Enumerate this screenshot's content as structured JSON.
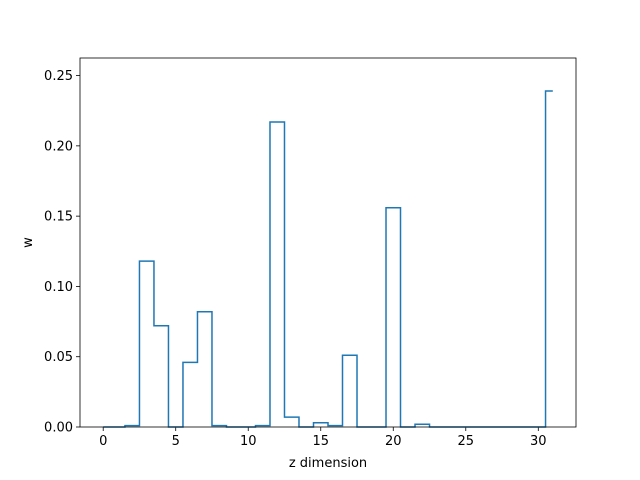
{
  "chart_data": {
    "type": "line",
    "subtype": "step-histogram",
    "title": "",
    "xlabel": "z dimension",
    "ylabel": "w",
    "xlim": [
      -1.6,
      32.6
    ],
    "ylim": [
      0,
      0.2625
    ],
    "xticks": [
      0,
      5,
      10,
      15,
      20,
      25,
      30
    ],
    "yticks": [
      0.0,
      0.05,
      0.1,
      0.15,
      0.2,
      0.25
    ],
    "ytick_labels": [
      "0.00",
      "0.05",
      "0.10",
      "0.15",
      "0.20",
      "0.25"
    ],
    "grid": false,
    "color": "#1f77b4",
    "series": [
      {
        "x": [
          0,
          1,
          2,
          3,
          4,
          5,
          6,
          7,
          8,
          9,
          10,
          11,
          12,
          13,
          14,
          15,
          16,
          17,
          18,
          19,
          20,
          21,
          22,
          23,
          24,
          25,
          26,
          27,
          28,
          29,
          30,
          31
        ],
        "values": [
          0.0,
          0.0,
          0.001,
          0.118,
          0.072,
          0.0,
          0.046,
          0.082,
          0.001,
          0.0,
          0.0,
          0.001,
          0.217,
          0.007,
          0.0,
          0.003,
          0.001,
          0.051,
          0.0,
          0.0,
          0.156,
          0.0,
          0.002,
          0.0,
          0.0,
          0.0,
          0.0,
          0.0,
          0.0,
          0.0,
          0.0,
          0.239
        ]
      }
    ]
  }
}
